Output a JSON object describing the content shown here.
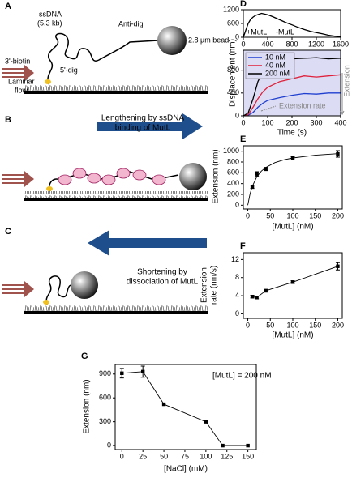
{
  "diagrams": {
    "A": {
      "label": "A",
      "biotin": "3'-biotin",
      "ssdna": "ssDNA",
      "length": "(5.3 kb)",
      "antidig": "Anti-dig",
      "bead": "2.8 µm bead",
      "dig": "5'-dig",
      "flow1": "Laminar",
      "flow2": "flow"
    },
    "B": {
      "label": "B",
      "text1": "Lengthening by ssDNA",
      "text2": "binding of MutL"
    },
    "C": {
      "label": "C",
      "text1": "Shortening by",
      "text2": "dissociation of MutL"
    }
  },
  "chart_data": [
    {
      "type": "line",
      "label": "D",
      "xlim": [
        0,
        1600
      ],
      "ylim": [
        0,
        1200
      ],
      "xticks": [
        0,
        400,
        800,
        1200,
        1600
      ],
      "yticks": [
        0,
        600,
        1200
      ],
      "annotations": [
        "+MutL",
        "-MutL"
      ],
      "series": [
        {
          "color": "#000000",
          "x": [
            0,
            40,
            80,
            120,
            160,
            200,
            250,
            300,
            350,
            400,
            450,
            500,
            600,
            700,
            800,
            900,
            1000,
            1100,
            1200,
            1300,
            1400,
            1500,
            1600
          ],
          "values": [
            0,
            300,
            600,
            780,
            880,
            950,
            1000,
            1040,
            1010,
            980,
            930,
            880,
            760,
            640,
            540,
            430,
            340,
            260,
            200,
            150,
            90,
            50,
            30
          ]
        }
      ]
    },
    {
      "type": "line",
      "y_label": "Displacement (nm)",
      "x_label": "Time (s)",
      "background": "#dcdcf4",
      "legend": "upper left",
      "xlim": [
        0,
        400
      ],
      "ylim": [
        0,
        1150
      ],
      "xticks": [
        0,
        100,
        200,
        300,
        400
      ],
      "yticks": [
        0,
        400,
        800
      ],
      "annotations": [
        "Extension rate",
        "Extension"
      ],
      "series": [
        {
          "name": "10 nM",
          "color": "#1f3fd0",
          "x": [
            0,
            20,
            40,
            60,
            80,
            100,
            150,
            200,
            250,
            300,
            350,
            400
          ],
          "values": [
            0,
            10,
            60,
            150,
            220,
            270,
            320,
            360,
            390,
            380,
            400,
            400
          ]
        },
        {
          "name": "40 nM",
          "color": "#e0203a",
          "x": [
            0,
            20,
            40,
            60,
            80,
            100,
            150,
            200,
            250,
            300,
            350,
            400
          ],
          "values": [
            0,
            20,
            150,
            300,
            420,
            500,
            600,
            650,
            700,
            680,
            700,
            720
          ]
        },
        {
          "name": "200 nM",
          "color": "#000000",
          "x": [
            0,
            20,
            40,
            60,
            80,
            100,
            150,
            200,
            250,
            300,
            350,
            400
          ],
          "values": [
            0,
            50,
            300,
            600,
            780,
            870,
            960,
            1000,
            1010,
            1020,
            1000,
            1010
          ]
        }
      ]
    },
    {
      "type": "scatter",
      "label": "E",
      "y_label": "Extension (nm)",
      "x_label": "[MutL] (nM)",
      "xlim": [
        -10,
        210
      ],
      "ylim": [
        -70,
        1100
      ],
      "xticks": [
        0,
        50,
        100,
        150,
        200
      ],
      "yticks": [
        0,
        200,
        400,
        600,
        800,
        1000
      ],
      "series": [
        {
          "color": "#000000",
          "markers": true,
          "line": false,
          "x": [
            10,
            20,
            40,
            100,
            200
          ],
          "values": [
            340,
            580,
            670,
            870,
            950
          ],
          "errors": [
            30,
            40,
            30,
            30,
            60
          ]
        },
        {
          "color": "#000000",
          "markers": false,
          "line": true,
          "x": [
            0,
            5,
            10,
            20,
            30,
            40,
            60,
            80,
            100,
            150,
            200
          ],
          "values": [
            0,
            210,
            350,
            525,
            630,
            700,
            788,
            840,
            875,
            926,
            955
          ]
        }
      ]
    },
    {
      "type": "scatter",
      "label": "F",
      "y_label": [
        "Extension",
        "rate (nm/s)"
      ],
      "x_label": "[MutL] (nM)",
      "xlim": [
        -10,
        210
      ],
      "ylim": [
        -1,
        13.5
      ],
      "xticks": [
        0,
        50,
        100,
        150,
        200
      ],
      "yticks": [
        0,
        4,
        8,
        12
      ],
      "series": [
        {
          "color": "#000000",
          "markers": true,
          "line": true,
          "x": [
            10,
            20,
            40,
            100,
            200
          ],
          "values": [
            3.8,
            3.6,
            5.1,
            7.0,
            10.5
          ],
          "errors": [
            0.3,
            0.3,
            0.3,
            0.3,
            0.8
          ]
        }
      ]
    },
    {
      "type": "scatter",
      "label": "G",
      "y_label": "Extension (nm)",
      "x_label": "[NaCl] (mM)",
      "annotations": [
        "[MutL] = 200 nM"
      ],
      "xlim": [
        -8,
        160
      ],
      "ylim": [
        -50,
        1020
      ],
      "xticks": [
        0,
        25,
        50,
        75,
        100,
        125,
        150
      ],
      "yticks": [
        0,
        300,
        600,
        900
      ],
      "series": [
        {
          "color": "#000000",
          "markers": true,
          "line": true,
          "x": [
            0,
            25,
            50,
            100,
            120,
            150
          ],
          "values": [
            910,
            930,
            520,
            300,
            0,
            0
          ],
          "errors": [
            60,
            70,
            null,
            null,
            null,
            null
          ]
        }
      ]
    }
  ]
}
